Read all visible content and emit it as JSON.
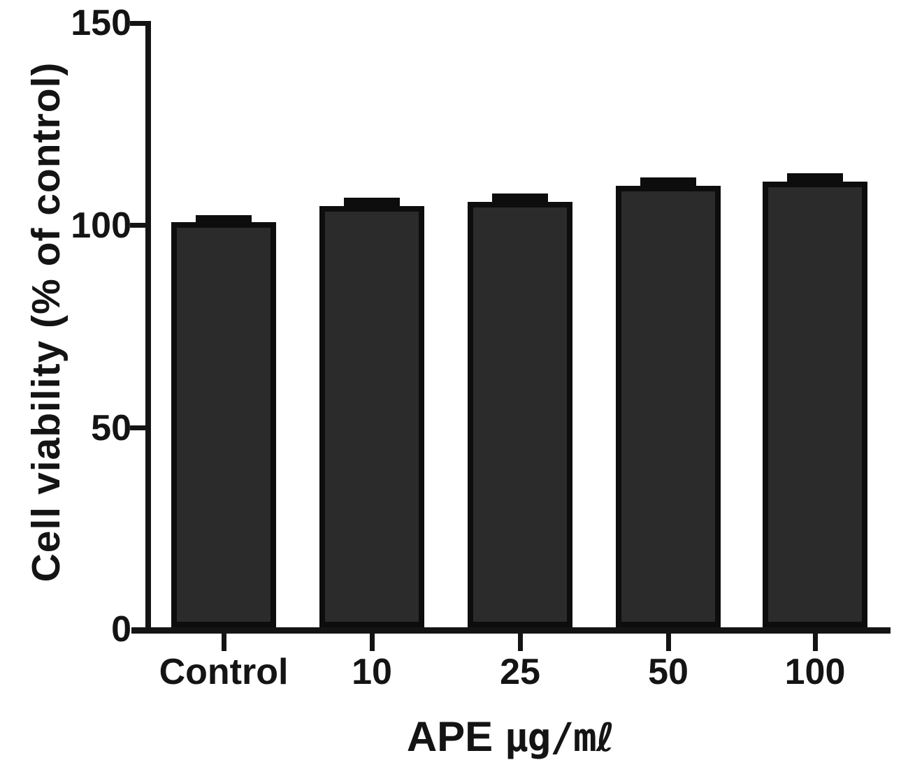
{
  "chart_data": {
    "type": "bar",
    "title": "",
    "ylabel": "Cell viability (% of control)",
    "xlabel": "APE μg/mℓ",
    "xlabel_main": "APE",
    "xlabel_units": "μg/mℓ",
    "categories": [
      "Control",
      "10",
      "25",
      "50",
      "100"
    ],
    "values": [
      100,
      104,
      105,
      109,
      110
    ],
    "errors": [
      1.7,
      2,
      2,
      2,
      2
    ],
    "error_style": "cap above bar top",
    "ylim": [
      0,
      150
    ],
    "yticks": [
      150,
      100,
      50,
      0
    ],
    "ytick_labels": [
      "150",
      "100",
      "50",
      "0"
    ],
    "grid": false,
    "legend": "none",
    "bar_fill": "#2b2b2b",
    "bar_border": "#0d0d0d",
    "axis_color": "#141414",
    "text_color": "#141414",
    "background": "#ffffff"
  }
}
